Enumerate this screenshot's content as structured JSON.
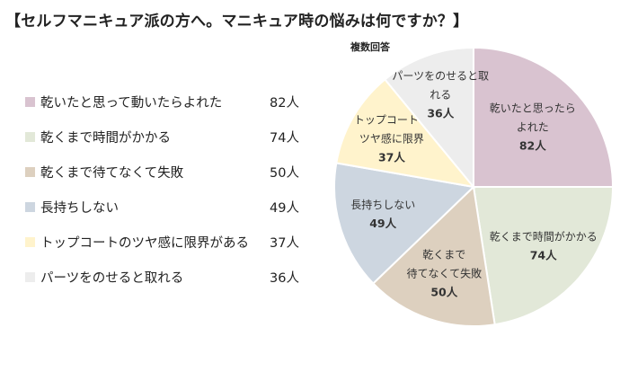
{
  "title": "【セルフマニキュア派の方へ。マニキュア時の悩みは何ですか？】",
  "subtitle": "複数回答",
  "chart_data": {
    "type": "pie",
    "unit": "人",
    "slices": [
      {
        "label": "乾いたと思って動いたらよれた",
        "pie_label": [
          "乾いたと思ったら",
          "よれた"
        ],
        "value": 82,
        "value_text": "82人",
        "count_text": "82人",
        "color": "#d9c3d0"
      },
      {
        "label": "乾くまで時間がかかる",
        "pie_label": [
          "乾くまで時間がかかる"
        ],
        "value": 74,
        "value_text": "74人",
        "count_text": "74人",
        "color": "#e2e8d8"
      },
      {
        "label": "乾くまで待てなくて失敗",
        "pie_label": [
          "乾くまで",
          "待てなくて失敗"
        ],
        "value": 50,
        "value_text": "50人",
        "count_text": "50人",
        "color": "#ddd0bf"
      },
      {
        "label": "長持ちしない",
        "pie_label": [
          "長持ちしない"
        ],
        "value": 49,
        "value_text": "49人",
        "count_text": "49人",
        "color": "#cdd6e0"
      },
      {
        "label": "トップコートのツヤ感に限界がある",
        "pie_label": [
          "トップコートの",
          "ツヤ感に限界"
        ],
        "value": 37,
        "value_text": "37人",
        "count_text": "37人",
        "color": "#fff3cc"
      },
      {
        "label": "パーツをのせると取れる",
        "pie_label": [
          "パーツをのせると取",
          "れる"
        ],
        "value": 36,
        "value_text": "36人",
        "count_text": "36人",
        "color": "#ededed"
      }
    ]
  }
}
